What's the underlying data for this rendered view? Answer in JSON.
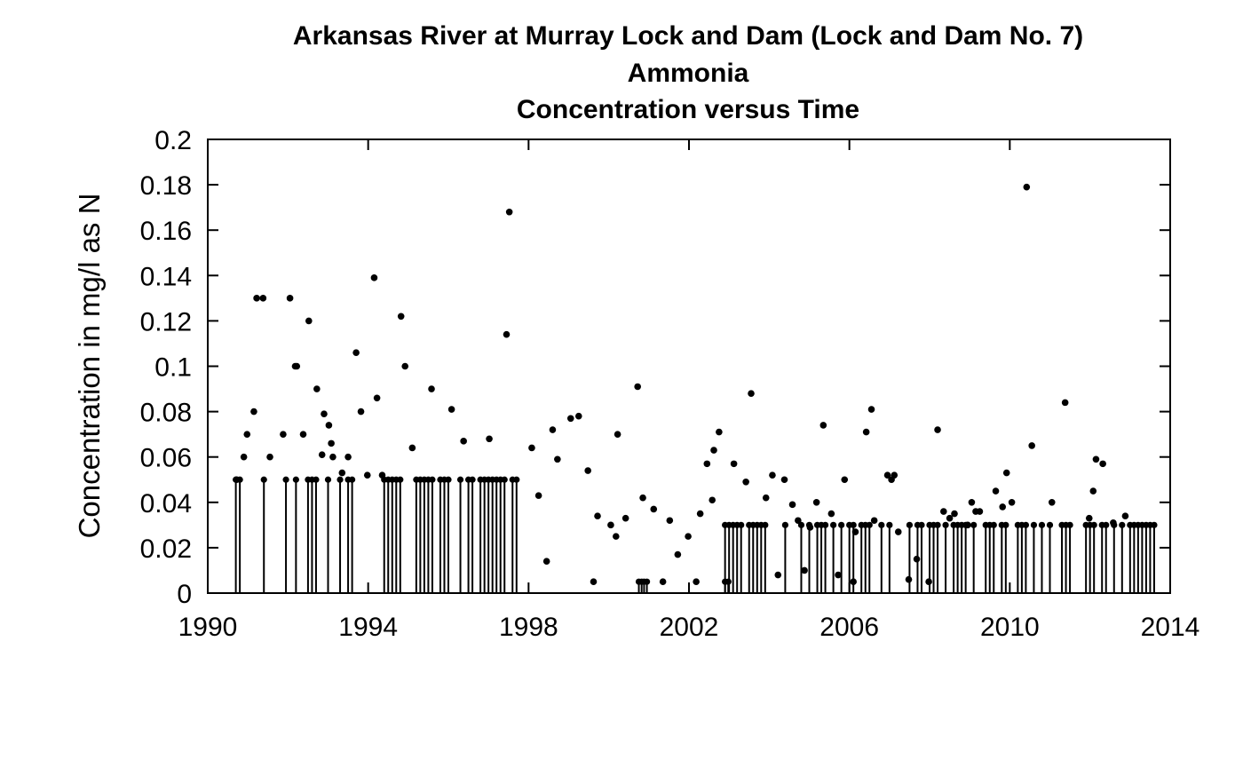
{
  "chart_data": {
    "type": "scatter",
    "title_lines": [
      "Arkansas River at Murray Lock and Dam (Lock and Dam No. 7)",
      "Ammonia",
      "Concentration versus Time"
    ],
    "xlabel": "",
    "ylabel": "Concentration in mg/l as N",
    "xlim": [
      1990,
      2014
    ],
    "ylim": [
      0,
      0.2
    ],
    "x_ticks": [
      1990,
      1994,
      1998,
      2002,
      2006,
      2010,
      2014
    ],
    "x_tick_labels": [
      "1990",
      "1994",
      "1998",
      "2002",
      "2006",
      "2010",
      "2014"
    ],
    "y_ticks": [
      0,
      0.02,
      0.04,
      0.06,
      0.08,
      0.1,
      0.12,
      0.14,
      0.16,
      0.18,
      0.2
    ],
    "y_tick_labels": [
      "0",
      "0.02",
      "0.04",
      "0.06",
      "0.08",
      "0.1",
      "0.12",
      "0.14",
      "0.16",
      "0.18",
      "0.2"
    ],
    "grid": false,
    "legend": "none",
    "marker_color": "#000000",
    "series": [
      {
        "kind": "detected",
        "x": [
          1990.72,
          1990.9,
          1990.98,
          1991.15,
          1991.22,
          1991.38,
          1991.55,
          1991.88,
          1992.05,
          1992.18,
          1992.22,
          1992.38,
          1992.52,
          1992.72,
          1992.85,
          1992.9,
          1993.02,
          1993.08,
          1993.12,
          1993.35,
          1993.5,
          1993.7,
          1993.82,
          1993.98,
          1994.15,
          1994.22,
          1994.35,
          1994.82,
          1994.92,
          1995.1,
          1995.58,
          1996.08,
          1996.38,
          1997.02,
          1997.45,
          1997.52,
          1998.08,
          1998.25,
          1998.45,
          1998.6,
          1998.72,
          1999.05,
          1999.25,
          1999.48,
          1999.62,
          1999.72,
          2000.05,
          2000.18,
          2000.22,
          2000.42,
          2000.72,
          2000.85,
          2001.12,
          2001.35,
          2001.52,
          2001.72,
          2001.98,
          2002.18,
          2002.28,
          2002.45,
          2002.58,
          2002.62,
          2002.75,
          2003.12,
          2003.42,
          2003.55,
          2003.92,
          2004.08,
          2004.22,
          2004.38,
          2004.58,
          2004.72,
          2004.88,
          2005.02,
          2005.18,
          2005.35,
          2005.55,
          2005.72,
          2005.88,
          2006.1,
          2006.15,
          2006.42,
          2006.55,
          2006.62,
          2006.95,
          2007.05,
          2007.12,
          2007.22,
          2007.48,
          2007.68,
          2007.98,
          2008.2,
          2008.35,
          2008.5,
          2008.62,
          2008.95,
          2009.05,
          2009.15,
          2009.25,
          2009.65,
          2009.82,
          2009.92,
          2010.05,
          2010.42,
          2010.55,
          2011.05,
          2011.38,
          2011.98,
          2012.08,
          2012.15,
          2012.32,
          2012.58,
          2012.88
        ],
        "y": [
          0.05,
          0.06,
          0.07,
          0.08,
          0.13,
          0.13,
          0.06,
          0.07,
          0.13,
          0.1,
          0.1,
          0.07,
          0.12,
          0.09,
          0.061,
          0.079,
          0.074,
          0.066,
          0.06,
          0.053,
          0.06,
          0.106,
          0.08,
          0.052,
          0.139,
          0.086,
          0.052,
          0.122,
          0.1,
          0.064,
          0.09,
          0.081,
          0.067,
          0.068,
          0.114,
          0.168,
          0.064,
          0.043,
          0.014,
          0.072,
          0.059,
          0.077,
          0.078,
          0.054,
          0.005,
          0.034,
          0.03,
          0.025,
          0.07,
          0.033,
          0.091,
          0.042,
          0.037,
          0.005,
          0.032,
          0.017,
          0.025,
          0.005,
          0.035,
          0.057,
          0.041,
          0.063,
          0.071,
          0.057,
          0.049,
          0.088,
          0.042,
          0.052,
          0.008,
          0.05,
          0.039,
          0.032,
          0.01,
          0.029,
          0.04,
          0.074,
          0.035,
          0.008,
          0.05,
          0.005,
          0.027,
          0.071,
          0.081,
          0.032,
          0.052,
          0.05,
          0.052,
          0.027,
          0.006,
          0.015,
          0.005,
          0.072,
          0.036,
          0.033,
          0.035,
          0.03,
          0.04,
          0.036,
          0.036,
          0.045,
          0.038,
          0.053,
          0.04,
          0.179,
          0.065,
          0.04,
          0.084,
          0.033,
          0.045,
          0.059,
          0.057,
          0.031,
          0.034
        ]
      },
      {
        "kind": "censored-stems",
        "x": [
          1990.7,
          1990.8,
          1991.4,
          1991.95,
          1992.2,
          1992.5,
          1992.6,
          1992.7,
          1993.0,
          1993.3,
          1993.5,
          1993.6,
          1994.4,
          1994.5,
          1994.6,
          1994.7,
          1994.8,
          1995.2,
          1995.3,
          1995.4,
          1995.5,
          1995.6,
          1995.8,
          1995.9,
          1996.0,
          1996.3,
          1996.5,
          1996.6,
          1996.8,
          1996.9,
          1997.0,
          1997.1,
          1997.2,
          1997.3,
          1997.4,
          1997.6,
          1997.7,
          2002.9,
          2003.0,
          2003.1,
          2003.2,
          2003.3,
          2003.5,
          2003.6,
          2003.7,
          2003.8,
          2003.9,
          2004.4,
          2004.8,
          2005.0,
          2005.2,
          2005.3,
          2005.4,
          2005.6,
          2005.8,
          2006.0,
          2006.1,
          2006.3,
          2006.4,
          2006.5,
          2006.8,
          2007.0,
          2007.5,
          2007.7,
          2007.8,
          2008.0,
          2008.1,
          2008.2,
          2008.4,
          2008.6,
          2008.7,
          2008.8,
          2008.9,
          2009.1,
          2009.4,
          2009.5,
          2009.6,
          2009.8,
          2009.9,
          2010.2,
          2010.3,
          2010.4,
          2010.6,
          2010.8,
          2011.0,
          2011.3,
          2011.4,
          2011.5,
          2011.9,
          2012.0,
          2012.1,
          2012.3,
          2012.4,
          2012.6,
          2012.8,
          2013.0,
          2013.1,
          2013.2,
          2013.3,
          2013.4,
          2013.5,
          2013.6
        ],
        "y": [
          0.05,
          0.05,
          0.05,
          0.05,
          0.05,
          0.05,
          0.05,
          0.05,
          0.05,
          0.05,
          0.05,
          0.05,
          0.05,
          0.05,
          0.05,
          0.05,
          0.05,
          0.05,
          0.05,
          0.05,
          0.05,
          0.05,
          0.05,
          0.05,
          0.05,
          0.05,
          0.05,
          0.05,
          0.05,
          0.05,
          0.05,
          0.05,
          0.05,
          0.05,
          0.05,
          0.05,
          0.05,
          0.03,
          0.03,
          0.03,
          0.03,
          0.03,
          0.03,
          0.03,
          0.03,
          0.03,
          0.03,
          0.03,
          0.03,
          0.03,
          0.03,
          0.03,
          0.03,
          0.03,
          0.03,
          0.03,
          0.03,
          0.03,
          0.03,
          0.03,
          0.03,
          0.03,
          0.03,
          0.03,
          0.03,
          0.03,
          0.03,
          0.03,
          0.03,
          0.03,
          0.03,
          0.03,
          0.03,
          0.03,
          0.03,
          0.03,
          0.03,
          0.03,
          0.03,
          0.03,
          0.03,
          0.03,
          0.03,
          0.03,
          0.03,
          0.03,
          0.03,
          0.03,
          0.03,
          0.03,
          0.03,
          0.03,
          0.03,
          0.03,
          0.03,
          0.03,
          0.03,
          0.03,
          0.03,
          0.03,
          0.03,
          0.03
        ]
      },
      {
        "kind": "censored-low-stems",
        "x": [
          2000.75,
          2000.82,
          2000.88,
          2000.95,
          2002.9,
          2002.98
        ],
        "y": [
          0.005,
          0.005,
          0.005,
          0.005,
          0.005,
          0.005
        ]
      }
    ]
  }
}
